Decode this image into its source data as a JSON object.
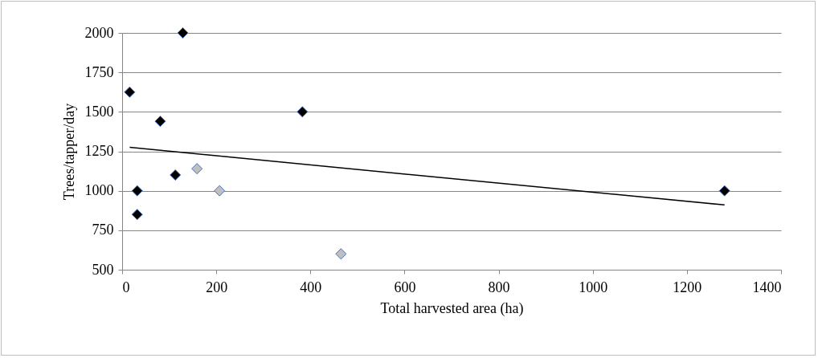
{
  "chart_data": {
    "type": "scatter",
    "xlabel": "Total harvested area (ha)",
    "ylabel": "Trees/tapper/day",
    "xlim": [
      0,
      1400
    ],
    "xticks": [
      0,
      200,
      400,
      600,
      800,
      1000,
      1200,
      1400
    ],
    "ylim": [
      500,
      2000
    ],
    "yticks": [
      500,
      750,
      1000,
      1250,
      1500,
      1750,
      2000
    ],
    "grid": "y",
    "marker": "diamond",
    "series": [
      {
        "color": "#000000",
        "x": [
          16,
          129,
          81,
          383,
          113,
          32,
          32,
          1280
        ],
        "values": [
          1625,
          2000,
          1440,
          1500,
          1100,
          1000,
          850,
          1000
        ]
      },
      {
        "color": "#bfbfbf",
        "x": [
          159,
          207,
          465
        ],
        "values": [
          1140,
          1000,
          600
        ]
      },
      {
        "type": "line",
        "color": "#000000",
        "line_style": "solid",
        "marker": "none",
        "x": [
          16,
          1280
        ],
        "values": [
          1275,
          910
        ]
      }
    ]
  }
}
